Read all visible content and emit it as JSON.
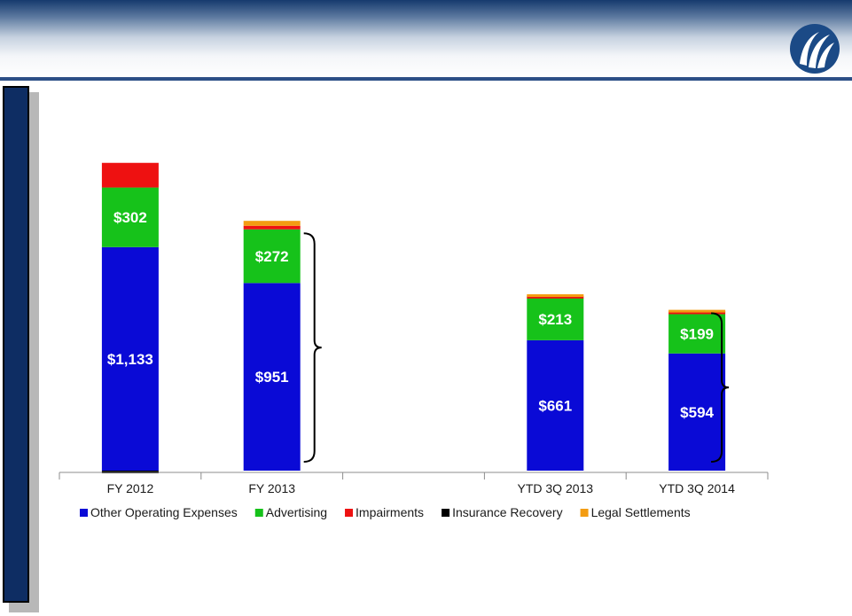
{
  "colors": {
    "Other Operating Expenses": "#0a0ad6",
    "Advertising": "#16c21a",
    "Impairments": "#ee1111",
    "Insurance Recovery": "#000000",
    "Legal Settlements": "#f39c12"
  },
  "chart_data": {
    "type": "bar",
    "stacked": true,
    "categories": [
      "FY 2012",
      "FY 2013",
      "",
      "YTD 3Q 2013",
      "YTD 3Q 2014"
    ],
    "series": [
      {
        "name": "Other Operating Expenses",
        "values": [
          1133,
          951,
          null,
          661,
          594
        ],
        "labels": [
          "$1,133",
          "$951",
          "",
          "$661",
          "$594"
        ]
      },
      {
        "name": "Advertising",
        "values": [
          302,
          272,
          null,
          213,
          199
        ],
        "labels": [
          "$302",
          "$272",
          "",
          "$213",
          "$199"
        ]
      },
      {
        "name": "Impairments",
        "values": [
          125,
          18,
          null,
          12,
          15
        ],
        "labels": [
          "",
          "",
          "",
          "",
          ""
        ]
      },
      {
        "name": "Insurance Recovery",
        "values": [
          -10,
          0,
          null,
          0,
          0
        ],
        "labels": [
          "",
          "",
          "",
          "",
          ""
        ]
      },
      {
        "name": "Legal Settlements",
        "values": [
          0,
          25,
          null,
          8,
          7
        ],
        "labels": [
          "",
          "",
          "",
          "",
          ""
        ]
      }
    ],
    "legend_position": "bottom",
    "grid": false,
    "ylim": [
      -10,
      1600
    ]
  }
}
